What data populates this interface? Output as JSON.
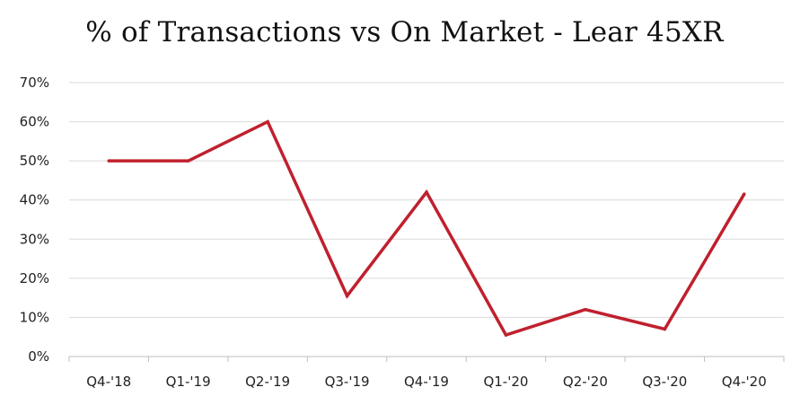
{
  "chart_data": {
    "type": "line",
    "title": "% of Transactions vs On Market - Lear 45XR",
    "categories": [
      "Q4-'18",
      "Q1-'19",
      "Q2-'19",
      "Q3-'19",
      "Q4-'19",
      "Q1-'20",
      "Q2-'20",
      "Q3-'20",
      "Q4-'20"
    ],
    "series": [
      {
        "values": [
          50,
          50,
          60,
          15.5,
          42,
          5.5,
          12,
          7,
          41.5
        ]
      }
    ],
    "ylim": [
      0,
      70
    ],
    "yticks": [
      0,
      10,
      20,
      30,
      40,
      50,
      60,
      70
    ],
    "ytick_labels": [
      "0%",
      "10%",
      "20%",
      "30%",
      "40%",
      "50%",
      "60%",
      "70%"
    ],
    "grid": true,
    "line_color": "#c0202e",
    "grid_color": "#d9d9d9",
    "axis_color": "#bfbfbf"
  }
}
